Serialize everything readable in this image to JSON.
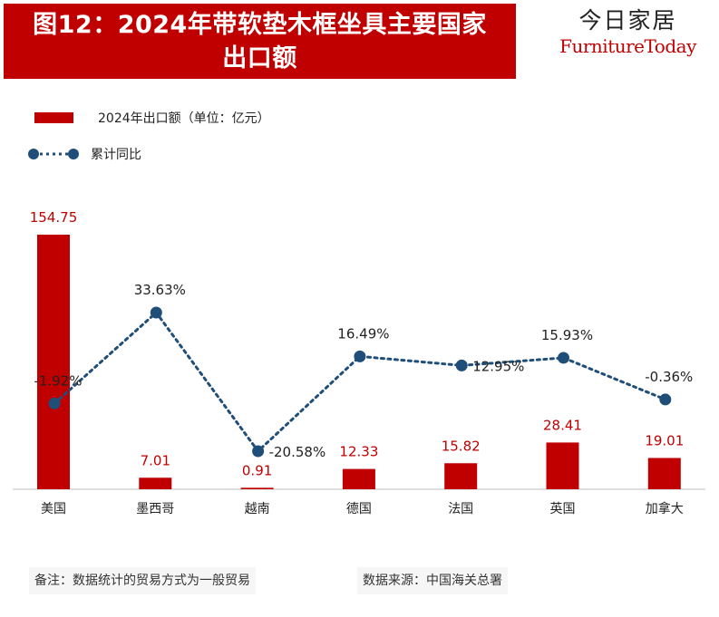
{
  "title": {
    "line1": "图12：2024年带软垫木框坐具主要国家",
    "line2": "出口额"
  },
  "brand": {
    "cn": "今日家居",
    "en": "FurnitureToday"
  },
  "colors": {
    "bar": "#c00000",
    "line": "#1f4e79",
    "text": "#222222",
    "axis": "#bfbfbf"
  },
  "chart_data": {
    "type": "bar",
    "categories": [
      "美国",
      "墨西哥",
      "越南",
      "德国",
      "法国",
      "英国",
      "加拿大"
    ],
    "series": [
      {
        "name": "2024年出口额（单位：亿元）",
        "type": "bar",
        "values": [
          154.75,
          7.01,
          0.91,
          12.33,
          15.82,
          28.41,
          19.01
        ],
        "labels": [
          "154.75",
          "7.01",
          "0.91",
          "12.33",
          "15.82",
          "28.41",
          "19.01"
        ]
      },
      {
        "name": "累计同比",
        "type": "line",
        "style": "dotted",
        "values": [
          -1.92,
          33.63,
          -20.58,
          16.49,
          12.95,
          15.93,
          -0.36
        ],
        "labels": [
          "-1.92%",
          "33.63%",
          "-20.58%",
          "16.49%",
          "12.95%",
          "15.93%",
          "-0.36%"
        ]
      }
    ],
    "legend_position": "top-left",
    "grid": false
  },
  "notes": {
    "left": "备注：数据统计的贸易方式为一般贸易",
    "right": "数据来源：中国海关总署"
  }
}
